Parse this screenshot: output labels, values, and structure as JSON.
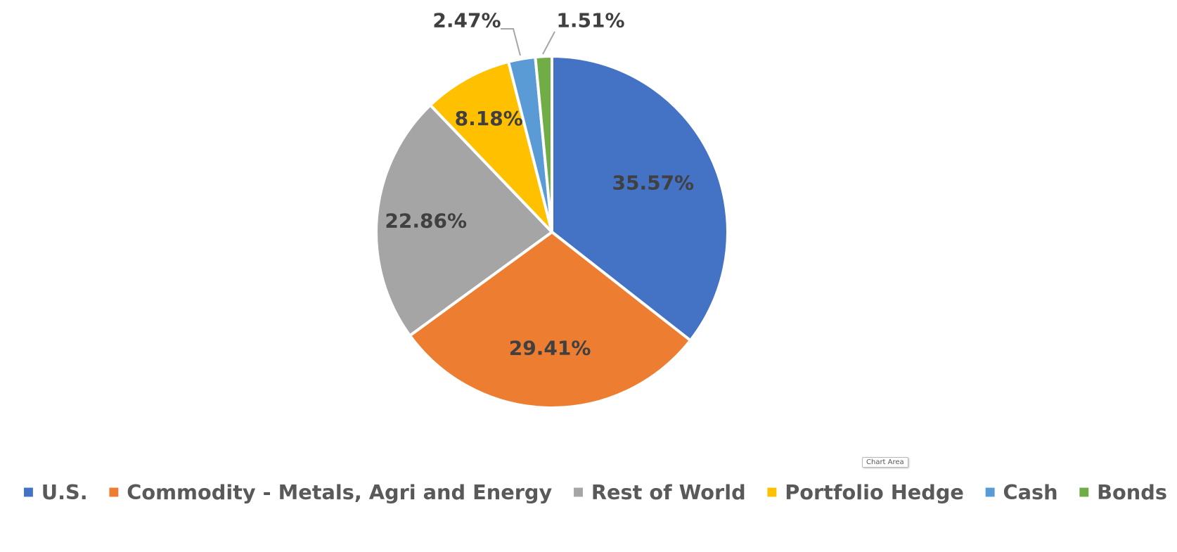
{
  "chart_data": {
    "type": "pie",
    "title": "",
    "categories": [
      "U.S.",
      "Commodity - Metals, Agri and Energy",
      "Rest of World",
      "Portfolio Hedge",
      "Cash",
      "Bonds"
    ],
    "values": [
      35.57,
      29.41,
      22.86,
      8.18,
      2.47,
      1.51
    ],
    "unit": "%",
    "labels": [
      "35.57%",
      "29.41%",
      "22.86%",
      "8.18%",
      "2.47%",
      "1.51%"
    ],
    "colors": [
      "#4472C4",
      "#ED7D31",
      "#A5A5A5",
      "#FFC000",
      "#5B9BD5",
      "#70AD47"
    ],
    "start_angle_deg": 0,
    "direction": "clockwise",
    "legend_position": "bottom",
    "leader_lines": [
      "Cash",
      "Bonds"
    ]
  },
  "tooltip": {
    "text": "Chart Area"
  }
}
